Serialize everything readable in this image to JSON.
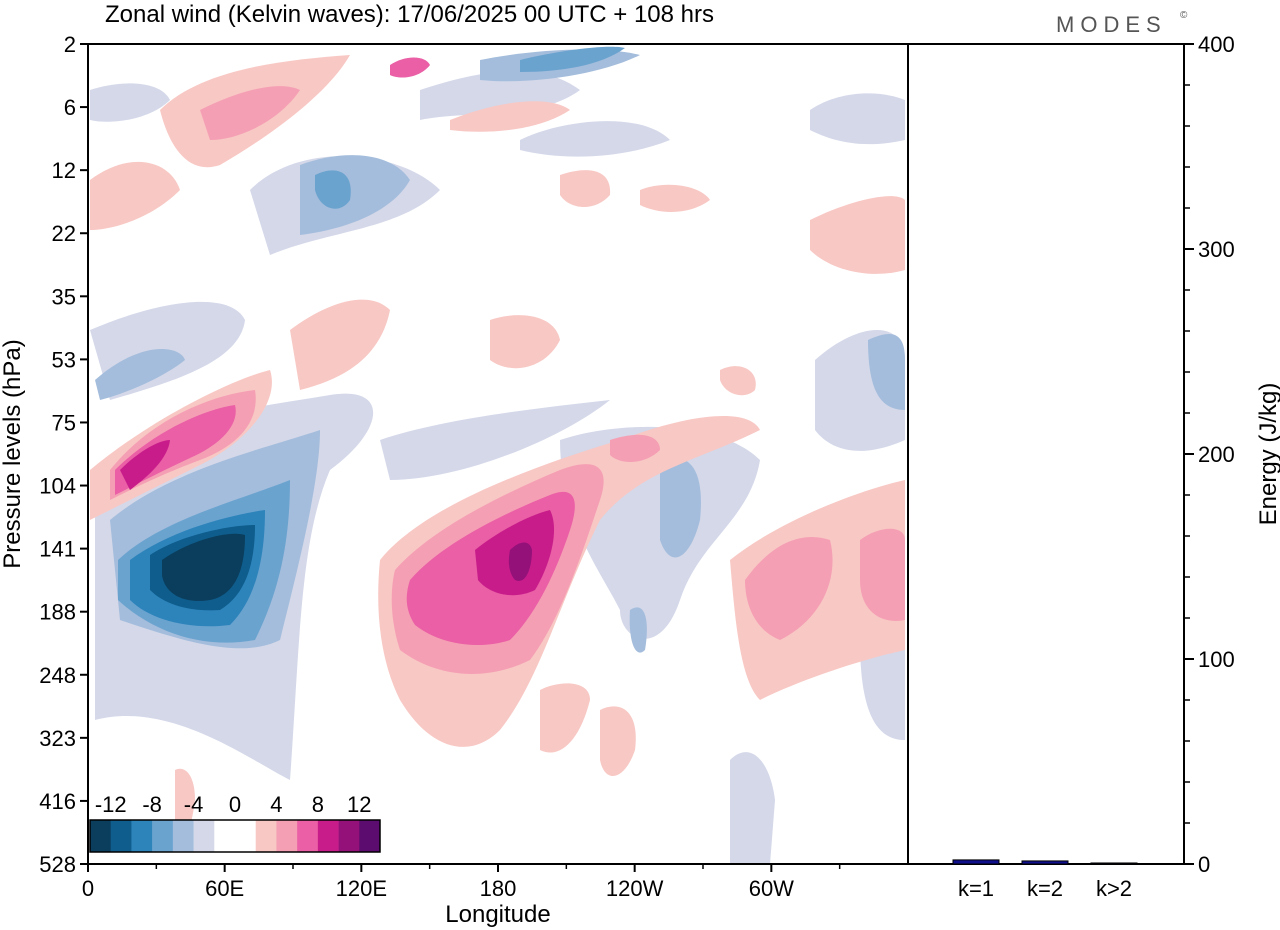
{
  "header": {
    "title": "Zonal wind (Kelvin waves):  17/06/2025  00 UTC  + 108 hrs",
    "logo": "MODES",
    "logo_mark": "©"
  },
  "chart_data": [
    {
      "type": "heatmap",
      "title": "Zonal wind (Kelvin waves):  17/06/2025  00 UTC  + 108 hrs",
      "xlabel": "Longitude",
      "ylabel": "Pressure levels (hPa)",
      "x_ticks": [
        "0",
        "60E",
        "120E",
        "180",
        "120W",
        "60W"
      ],
      "x_tick_values": [
        0,
        60,
        120,
        180,
        240,
        300
      ],
      "x_range": [
        0,
        360
      ],
      "y_ticks": [
        "2",
        "6",
        "12",
        "22",
        "35",
        "53",
        "75",
        "104",
        "141",
        "188",
        "248",
        "323",
        "416",
        "528"
      ],
      "y_scale": "model-levels, pressure increasing downward",
      "colorbar": {
        "labels": [
          "-12",
          "-8",
          "-4",
          "0",
          "4",
          "8",
          "12"
        ],
        "colors": [
          "#0b3d5c",
          "#0e5d8c",
          "#2d84bb",
          "#6ba3cf",
          "#a4bddc",
          "#d4d8e9",
          "#ffffff",
          "#ffffff",
          "#f8c8c4",
          "#f59fb4",
          "#ea5fa5",
          "#c81c8a",
          "#95117a",
          "#5c0c6e"
        ]
      },
      "features": [
        {
          "name": "negative maximum",
          "lon": 50,
          "pressure": 141,
          "value": -14
        },
        {
          "name": "positive maximum",
          "lon": 190,
          "pressure": 141,
          "value": 12
        },
        {
          "name": "positive maximum",
          "lon": 30,
          "pressure": 104,
          "value": 10
        },
        {
          "name": "negative band",
          "lon": 220,
          "pressure": 2,
          "value": -10
        }
      ]
    },
    {
      "type": "bar",
      "categories": [
        "k=1",
        "k=2",
        "k>2"
      ],
      "values": [
        2,
        1.5,
        0.5
      ],
      "ylabel": "Energy (J/kg)",
      "ylim": [
        0,
        400
      ],
      "y_ticks": [
        "0",
        "100",
        "200",
        "300",
        "400"
      ],
      "bar_color": "#10108c"
    }
  ]
}
